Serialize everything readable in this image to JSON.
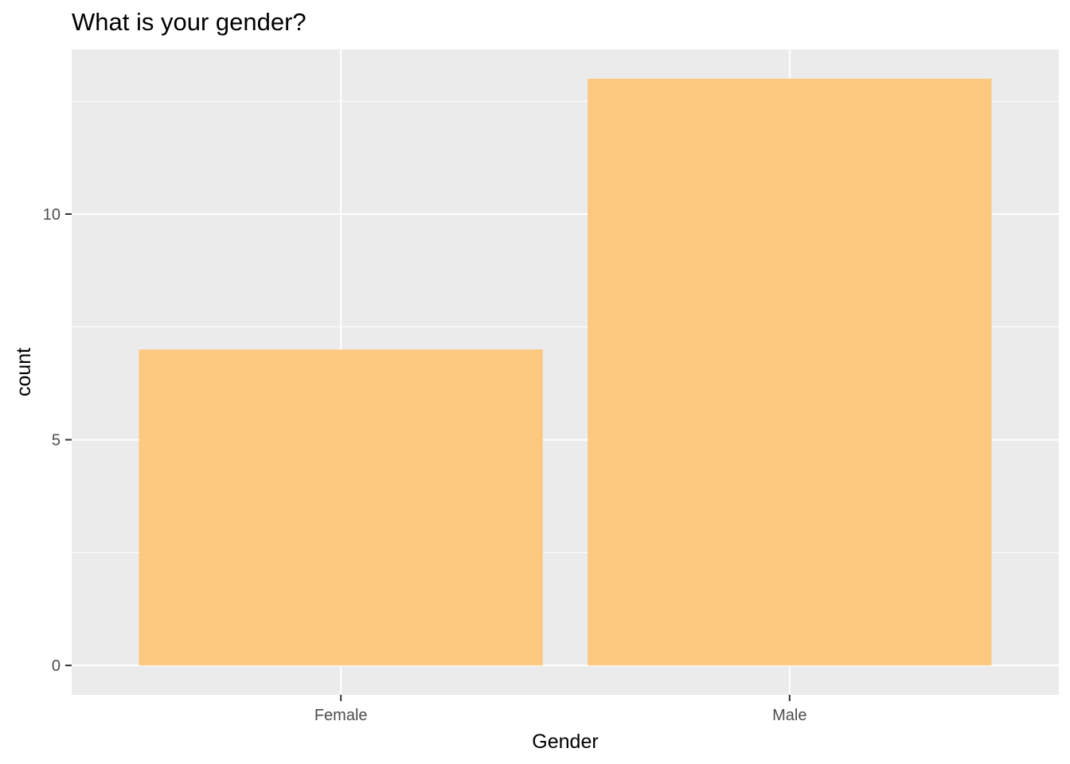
{
  "chart_data": {
    "type": "bar",
    "title": "What is your gender?",
    "xlabel": "Gender",
    "ylabel": "count",
    "categories": [
      "Female",
      "Male"
    ],
    "values": [
      7,
      13
    ],
    "ylim": [
      -0.65,
      13.65
    ],
    "y_ticks": [
      0,
      5,
      10
    ],
    "y_tick_labels": [
      "0",
      "5",
      "10"
    ],
    "y_minor_ticks": [
      2.5,
      7.5,
      12.5
    ],
    "grid": true,
    "colors": {
      "bar": "#FDC880",
      "panel_background": "#EBEBEB",
      "grid": "#FFFFFF",
      "tick_text": "#4D4D4D",
      "tick_mark": "#333333"
    }
  }
}
